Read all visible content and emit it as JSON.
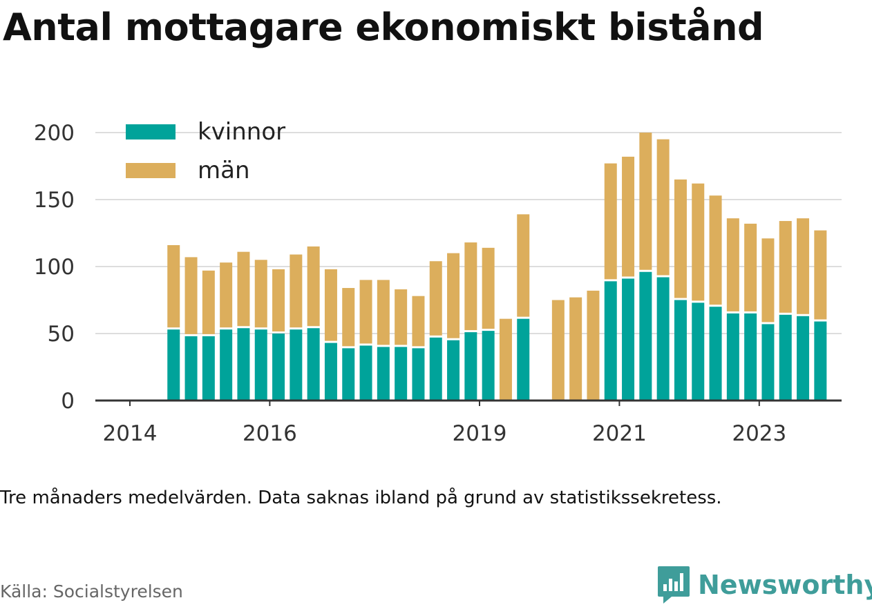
{
  "title": "Antal mottagare ekonomiskt bistånd",
  "subtitle": "Tre månaders medelvärden. Data saknas ibland på grund av statistikssekretess.",
  "source": "Källa: Socialstyrelsen",
  "brand": {
    "name": "Newsworthy",
    "color": "#3f9d9a",
    "icon": "newsworthy-logo-icon"
  },
  "chart_data": {
    "type": "bar",
    "stacked": true,
    "x_unit": "quarter",
    "x_tick_labels": [
      "2014",
      "2016",
      "2019",
      "2021",
      "2023"
    ],
    "x": [
      "2014-Q3",
      "2014-Q4",
      "2015-Q1",
      "2015-Q2",
      "2015-Q3",
      "2015-Q4",
      "2016-Q1",
      "2016-Q2",
      "2016-Q3",
      "2016-Q4",
      "2017-Q1",
      "2017-Q2",
      "2017-Q3",
      "2017-Q4",
      "2018-Q1",
      "2018-Q2",
      "2018-Q3",
      "2018-Q4",
      "2019-Q1",
      "2019-Q2",
      "2019-Q3",
      "2019-Q4",
      "2020-Q1",
      "2020-Q2",
      "2020-Q3",
      "2020-Q4",
      "2021-Q1",
      "2021-Q2",
      "2021-Q3",
      "2021-Q4",
      "2022-Q1",
      "2022-Q2",
      "2022-Q3",
      "2022-Q4",
      "2023-Q1",
      "2023-Q2",
      "2023-Q3",
      "2023-Q4"
    ],
    "series": [
      {
        "name": "kvinnor",
        "color": "#00a39a",
        "values": [
          53,
          48,
          48,
          53,
          54,
          53,
          50,
          53,
          54,
          43,
          39,
          41,
          40,
          40,
          39,
          47,
          45,
          51,
          52,
          0,
          61,
          null,
          0,
          0,
          0,
          89,
          91,
          96,
          92,
          75,
          73,
          70,
          65,
          65,
          57,
          64,
          63,
          59
        ]
      },
      {
        "name": "män",
        "color": "#dcae5c",
        "values": [
          63,
          59,
          49,
          50,
          57,
          52,
          48,
          56,
          61,
          55,
          45,
          49,
          50,
          43,
          39,
          57,
          65,
          67,
          62,
          61,
          78,
          null,
          75,
          77,
          82,
          88,
          91,
          104,
          103,
          90,
          89,
          83,
          71,
          67,
          64,
          70,
          73,
          68
        ]
      }
    ],
    "y_ticks": [
      0,
      50,
      100,
      150,
      200
    ],
    "ylim": [
      0,
      200
    ],
    "grid": true,
    "legend_position": "top-left",
    "xlabel": "",
    "ylabel": ""
  }
}
